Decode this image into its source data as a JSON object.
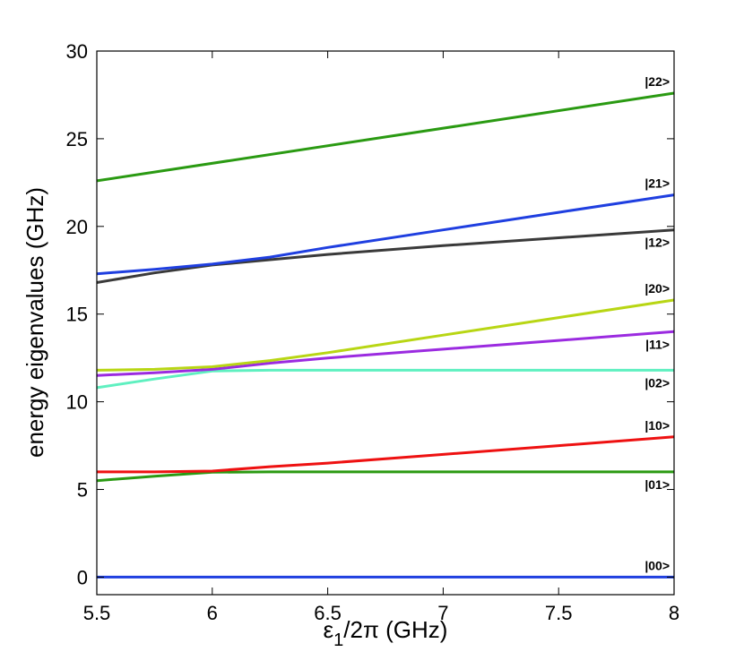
{
  "chart_data": {
    "type": "line",
    "title": "",
    "xlabel_main": "ε",
    "xlabel_sub": "1",
    "xlabel_rest": "/2π (GHz)",
    "ylabel": "energy eigenvalues (GHz)",
    "xlim": [
      5.5,
      8
    ],
    "ylim": [
      -1,
      30
    ],
    "xticks": [
      5.5,
      6,
      6.5,
      7,
      7.5,
      8
    ],
    "xtick_labels": [
      "5.5",
      "6",
      "6.5",
      "7",
      "7.5",
      "8"
    ],
    "yticks": [
      0,
      5,
      10,
      15,
      20,
      25,
      30
    ],
    "ytick_labels": [
      "0",
      "5",
      "10",
      "15",
      "20",
      "25",
      "30"
    ],
    "grid": false,
    "series": [
      {
        "name": "|00>",
        "color": "#1f3fe0",
        "x": [
          5.5,
          8
        ],
        "y": [
          0,
          0
        ]
      },
      {
        "name": "|01>",
        "color": "#2a9a12",
        "x": [
          5.5,
          5.75,
          6.0,
          6.25,
          6.5,
          8
        ],
        "y": [
          5.5,
          5.75,
          5.98,
          6.0,
          6.0,
          6.0
        ]
      },
      {
        "name": "|10>",
        "color": "#ee1111",
        "x": [
          5.5,
          5.75,
          6.0,
          6.25,
          6.5,
          7,
          7.5,
          8
        ],
        "y": [
          6.0,
          6.0,
          6.05,
          6.3,
          6.5,
          7.0,
          7.5,
          8.0
        ]
      },
      {
        "name": "|02>",
        "color": "#5ff0c0",
        "x": [
          5.5,
          5.75,
          6.0,
          6.25,
          6.5,
          8
        ],
        "y": [
          10.8,
          11.3,
          11.75,
          11.8,
          11.8,
          11.8
        ]
      },
      {
        "name": "|11>",
        "color": "#9b2be0",
        "x": [
          5.5,
          5.75,
          6.0,
          6.25,
          6.5,
          7,
          7.5,
          8
        ],
        "y": [
          11.5,
          11.65,
          11.85,
          12.2,
          12.5,
          13.0,
          13.5,
          14.0
        ]
      },
      {
        "name": "|20>",
        "color": "#b8d614",
        "x": [
          5.5,
          5.75,
          6.0,
          6.25,
          6.5,
          7,
          7.5,
          8
        ],
        "y": [
          11.8,
          11.85,
          12.0,
          12.35,
          12.8,
          13.8,
          14.8,
          15.8
        ]
      },
      {
        "name": "|12>",
        "color": "#3a3a3a",
        "x": [
          5.5,
          5.75,
          6.0,
          6.25,
          6.5,
          7,
          7.5,
          8
        ],
        "y": [
          16.8,
          17.35,
          17.8,
          18.1,
          18.4,
          18.9,
          19.35,
          19.8
        ]
      },
      {
        "name": "|21>",
        "color": "#1f3fe0",
        "x": [
          5.5,
          5.75,
          6.0,
          6.25,
          6.5,
          7,
          7.5,
          8
        ],
        "y": [
          17.3,
          17.55,
          17.85,
          18.25,
          18.8,
          19.8,
          20.8,
          21.8
        ]
      },
      {
        "name": "|22>",
        "color": "#2a9a12",
        "x": [
          5.5,
          8
        ],
        "y": [
          22.6,
          27.6
        ]
      }
    ]
  }
}
